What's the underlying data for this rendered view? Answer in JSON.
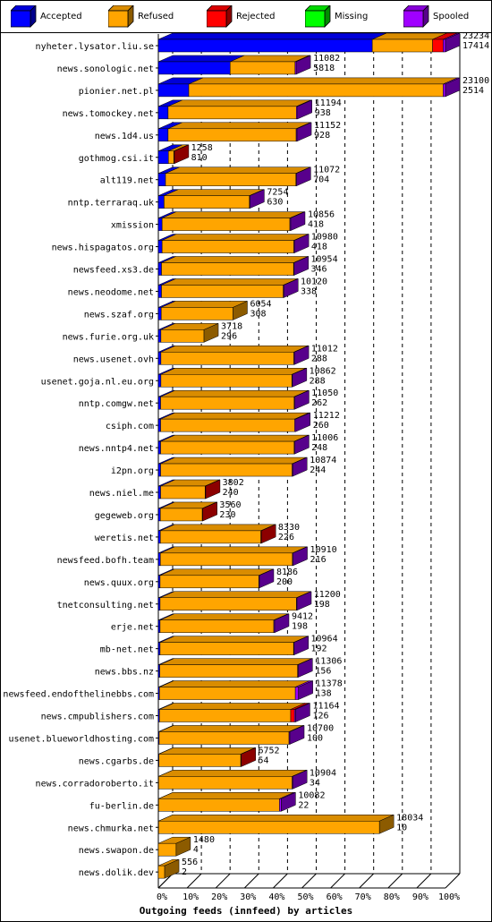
{
  "legend": [
    {
      "label": "Accepted",
      "color": "#0000ff"
    },
    {
      "label": "Refused",
      "color": "#ffa500"
    },
    {
      "label": "Rejected",
      "color": "#ff0000"
    },
    {
      "label": "Missing",
      "color": "#00ff00"
    },
    {
      "label": "Spooled",
      "color": "#a000ff"
    }
  ],
  "chart_data": {
    "type": "bar",
    "orientation": "horizontal",
    "stacked": true,
    "title": "Outgoing feeds (innfeed) by articles",
    "xlabel": "Outgoing feeds (innfeed) by articles",
    "xlim": [
      0,
      100
    ],
    "xunit": "%",
    "xticks": [
      "0%",
      "10%",
      "20%",
      "30%",
      "40%",
      "50%",
      "60%",
      "70%",
      "80%",
      "90%",
      "100%"
    ],
    "grid": true,
    "legend_position": "top",
    "series_colors": {
      "Accepted": "#0000ff",
      "Refused": "#ffa500",
      "Rejected": "#ff0000",
      "Missing": "#00ff00",
      "Spooled": "#a000ff"
    },
    "bars": [
      {
        "name": "nyheter.lysator.liu.se",
        "top": "23234",
        "bottom": "17414",
        "segments": [
          [
            "Accepted",
            74.5
          ],
          [
            "Refused",
            21.0
          ],
          [
            "Rejected",
            3.7
          ],
          [
            "Spooled",
            0.8
          ]
        ]
      },
      {
        "name": "news.sonologic.net",
        "top": "11082",
        "bottom": "5818",
        "segments": [
          [
            "Accepted",
            25.0
          ],
          [
            "Refused",
            22.6
          ],
          [
            "Spooled",
            0.4
          ]
        ]
      },
      {
        "name": "pionier.net.pl",
        "top": "23100",
        "bottom": "2514",
        "segments": [
          [
            "Accepted",
            10.6
          ],
          [
            "Refused",
            88.6
          ],
          [
            "Spooled",
            0.8
          ]
        ]
      },
      {
        "name": "news.tomockey.net",
        "top": "11194",
        "bottom": "938",
        "segments": [
          [
            "Accepted",
            3.4
          ],
          [
            "Refused",
            44.7
          ],
          [
            "Spooled",
            0.4
          ]
        ]
      },
      {
        "name": "news.1d4.us",
        "top": "11152",
        "bottom": "928",
        "segments": [
          [
            "Accepted",
            3.4
          ],
          [
            "Refused",
            44.6
          ],
          [
            "Spooled",
            0.3
          ]
        ]
      },
      {
        "name": "gothmog.csi.it",
        "top": "1258",
        "bottom": "810",
        "segments": [
          [
            "Accepted",
            3.5
          ],
          [
            "Refused",
            1.9
          ],
          [
            "Rejected",
            0.1
          ]
        ]
      },
      {
        "name": "alt119.net",
        "top": "11072",
        "bottom": "704",
        "segments": [
          [
            "Accepted",
            2.5
          ],
          [
            "Refused",
            45.4
          ],
          [
            "Spooled",
            0.1
          ]
        ]
      },
      {
        "name": "nntp.terraraq.uk",
        "top": "7254",
        "bottom": "630",
        "segments": [
          [
            "Accepted",
            2.0
          ],
          [
            "Refused",
            29.7
          ],
          [
            "Spooled",
            0.2
          ]
        ]
      },
      {
        "name": "xmission",
        "top": "10856",
        "bottom": "418",
        "segments": [
          [
            "Accepted",
            1.3
          ],
          [
            "Refused",
            44.5
          ],
          [
            "Spooled",
            0.3
          ]
        ]
      },
      {
        "name": "news.hispagatos.org",
        "top": "10980",
        "bottom": "418",
        "segments": [
          [
            "Accepted",
            1.3
          ],
          [
            "Refused",
            45.9
          ],
          [
            "Spooled",
            0.1
          ]
        ]
      },
      {
        "name": "newsfeed.xs3.de",
        "top": "10954",
        "bottom": "346",
        "segments": [
          [
            "Accepted",
            1.1
          ],
          [
            "Refused",
            46.0
          ],
          [
            "Spooled",
            0.1
          ]
        ]
      },
      {
        "name": "news.neodome.net",
        "top": "10120",
        "bottom": "338",
        "segments": [
          [
            "Accepted",
            1.1
          ],
          [
            "Refused",
            42.4
          ],
          [
            "Spooled",
            0.1
          ]
        ]
      },
      {
        "name": "news.szaf.org",
        "top": "6054",
        "bottom": "308",
        "segments": [
          [
            "Accepted",
            1.0
          ],
          [
            "Refused",
            25.0
          ]
        ]
      },
      {
        "name": "news.furie.org.uk",
        "top": "3718",
        "bottom": "296",
        "segments": [
          [
            "Accepted",
            0.9
          ],
          [
            "Refused",
            15.0
          ]
        ]
      },
      {
        "name": "news.usenet.ovh",
        "top": "11012",
        "bottom": "288",
        "segments": [
          [
            "Accepted",
            0.9
          ],
          [
            "Refused",
            46.3
          ],
          [
            "Spooled",
            0.1
          ]
        ]
      },
      {
        "name": "usenet.goja.nl.eu.org",
        "top": "10862",
        "bottom": "288",
        "segments": [
          [
            "Accepted",
            0.9
          ],
          [
            "Refused",
            45.6
          ],
          [
            "Spooled",
            0.1
          ]
        ]
      },
      {
        "name": "nntp.comgw.net",
        "top": "11050",
        "bottom": "262",
        "segments": [
          [
            "Accepted",
            0.8
          ],
          [
            "Refused",
            46.5
          ],
          [
            "Spooled",
            0.1
          ]
        ]
      },
      {
        "name": "csiph.com",
        "top": "11212",
        "bottom": "260",
        "segments": [
          [
            "Accepted",
            0.8
          ],
          [
            "Refused",
            46.7
          ],
          [
            "Spooled",
            0.4
          ]
        ]
      },
      {
        "name": "news.nntp4.net",
        "top": "11006",
        "bottom": "248",
        "segments": [
          [
            "Accepted",
            0.8
          ],
          [
            "Refused",
            46.5
          ],
          [
            "Spooled",
            0.1
          ]
        ]
      },
      {
        "name": "i2pn.org",
        "top": "10874",
        "bottom": "244",
        "segments": [
          [
            "Accepted",
            0.8
          ],
          [
            "Refused",
            45.8
          ],
          [
            "Spooled",
            0.2
          ]
        ]
      },
      {
        "name": "news.niel.me",
        "top": "3802",
        "bottom": "240",
        "segments": [
          [
            "Accepted",
            0.8
          ],
          [
            "Refused",
            15.5
          ],
          [
            "Rejected",
            0.1
          ]
        ]
      },
      {
        "name": "gegeweb.org",
        "top": "3560",
        "bottom": "230",
        "segments": [
          [
            "Accepted",
            0.7
          ],
          [
            "Refused",
            14.6
          ],
          [
            "Rejected",
            0.1
          ]
        ]
      },
      {
        "name": "weretis.net",
        "top": "8330",
        "bottom": "226",
        "segments": [
          [
            "Accepted",
            0.7
          ],
          [
            "Refused",
            35.0
          ],
          [
            "Rejected",
            0.1
          ]
        ]
      },
      {
        "name": "newsfeed.bofh.team",
        "top": "10910",
        "bottom": "216",
        "segments": [
          [
            "Accepted",
            0.7
          ],
          [
            "Refused",
            46.0
          ],
          [
            "Spooled",
            0.2
          ]
        ]
      },
      {
        "name": "news.quux.org",
        "top": "8186",
        "bottom": "200",
        "segments": [
          [
            "Accepted",
            0.6
          ],
          [
            "Refused",
            34.4
          ],
          [
            "Spooled",
            0.2
          ]
        ]
      },
      {
        "name": "tnetconsulting.net",
        "top": "11200",
        "bottom": "198",
        "segments": [
          [
            "Accepted",
            0.6
          ],
          [
            "Refused",
            47.5
          ],
          [
            "Spooled",
            0.1
          ]
        ]
      },
      {
        "name": "erje.net",
        "top": "9412",
        "bottom": "198",
        "segments": [
          [
            "Accepted",
            0.6
          ],
          [
            "Refused",
            39.6
          ],
          [
            "Spooled",
            0.3
          ]
        ]
      },
      {
        "name": "mb-net.net",
        "top": "10964",
        "bottom": "192",
        "segments": [
          [
            "Accepted",
            0.6
          ],
          [
            "Refused",
            46.5
          ],
          [
            "Spooled",
            0.1
          ]
        ]
      },
      {
        "name": "news.bbs.nz",
        "top": "11306",
        "bottom": "156",
        "segments": [
          [
            "Accepted",
            0.5
          ],
          [
            "Refused",
            48.0
          ],
          [
            "Spooled",
            0.2
          ]
        ]
      },
      {
        "name": "newsfeed.endofthelinebbs.com",
        "top": "11378",
        "bottom": "138",
        "segments": [
          [
            "Accepted",
            0.4
          ],
          [
            "Refused",
            47.3
          ],
          [
            "Spooled",
            1.1
          ]
        ]
      },
      {
        "name": "news.cmpublishers.com",
        "top": "11164",
        "bottom": "126",
        "segments": [
          [
            "Accepted",
            0.4
          ],
          [
            "Refused",
            45.7
          ],
          [
            "Rejected",
            1.3
          ],
          [
            "Spooled",
            0.4
          ]
        ]
      },
      {
        "name": "usenet.blueworldhosting.com",
        "top": "10700",
        "bottom": "100",
        "segments": [
          [
            "Accepted",
            0.3
          ],
          [
            "Refused",
            45.2
          ],
          [
            "Spooled",
            0.3
          ]
        ]
      },
      {
        "name": "news.cgarbs.de",
        "top": "6752",
        "bottom": "54",
        "segments": [
          [
            "Accepted",
            0.2
          ],
          [
            "Refused",
            28.5
          ],
          [
            "Rejected",
            0.1
          ]
        ]
      },
      {
        "name": "news.corradoroberto.it",
        "top": "10904",
        "bottom": "34",
        "segments": [
          [
            "Accepted",
            0.1
          ],
          [
            "Refused",
            46.5
          ],
          [
            "Spooled",
            0.1
          ]
        ]
      },
      {
        "name": "fu-berlin.de",
        "top": "10082",
        "bottom": "22",
        "segments": [
          [
            "Accepted",
            0.1
          ],
          [
            "Refused",
            42.1
          ],
          [
            "Spooled",
            0.6
          ]
        ]
      },
      {
        "name": "news.chmurka.net",
        "top": "18034",
        "bottom": "10",
        "segments": [
          [
            "Accepted",
            0.1
          ],
          [
            "Refused",
            76.9
          ]
        ]
      },
      {
        "name": "news.swapon.de",
        "top": "1480",
        "bottom": "4",
        "segments": [
          [
            "Refused",
            6.2
          ]
        ]
      },
      {
        "name": "news.dolik.dev",
        "top": "556",
        "bottom": "2",
        "segments": [
          [
            "Refused",
            2.2
          ]
        ]
      }
    ]
  }
}
